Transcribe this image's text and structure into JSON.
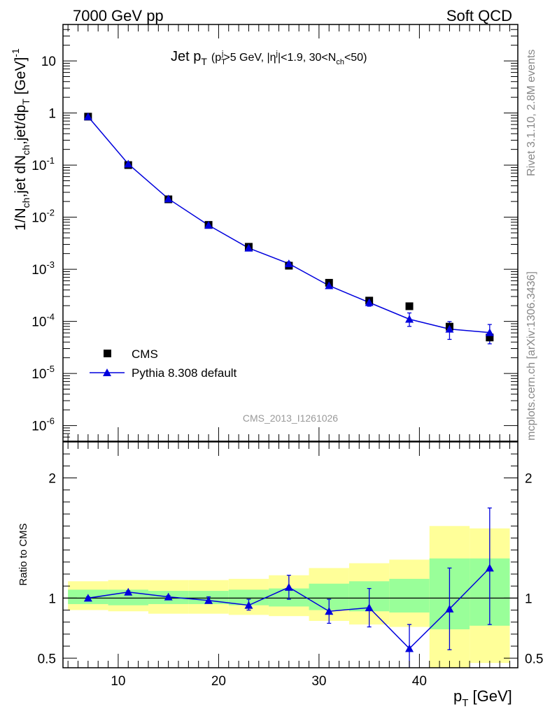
{
  "header": {
    "left_title": "7000 GeV pp",
    "right_title": "Soft QCD"
  },
  "side_labels": {
    "rivet": "Rivet 3.1.10,  2.8M events",
    "mcplots": "mcplots.cern.ch [arXiv:1306.3436]"
  },
  "colors": {
    "mc": "#0000dd",
    "data": "#000000",
    "band_inner": "#99ff99",
    "band_outer": "#ffff99"
  },
  "chart_data": [
    {
      "type": "line",
      "panel": "main",
      "title": "Jet pT (pTj>5 GeV, |ηj|<1.9, 30<Nch<50)",
      "title_parts": {
        "main": "Jet p",
        "main_sub": "T",
        "cut_open": "(p",
        "cut_sub": "T",
        "cut_sup": "j",
        "cut_mid": ">5 GeV, |η",
        "cut_sup2": "j",
        "cut_mid2": "|<1.9, 30<N",
        "cut_sub2": "ch",
        "cut_end": "<50)"
      },
      "ylabel": "1/Nch,jet dNch,jet/dpT [GeV]-1",
      "ylabel_parts": {
        "a": "1/N",
        "a_sub": "ch",
        "b": ",jet dN",
        "b_sub": "ch",
        "c": ",jet/dp",
        "c_sub": "T",
        "d": " [GeV]",
        "d_sup": "-1"
      },
      "analysis_id": "CMS_2013_I1261026",
      "yscale": "log",
      "ylim": [
        5e-07,
        50
      ],
      "xlim": [
        4.5,
        49.8
      ],
      "y_ticks": [
        {
          "v": 1e-06,
          "base": "10",
          "exp": "-6"
        },
        {
          "v": 1e-05,
          "base": "10",
          "exp": "-5"
        },
        {
          "v": 0.0001,
          "base": "10",
          "exp": "-4"
        },
        {
          "v": 0.001,
          "base": "10",
          "exp": "-3"
        },
        {
          "v": 0.01,
          "base": "10",
          "exp": "-2"
        },
        {
          "v": 0.1,
          "base": "10",
          "exp": "-1"
        },
        {
          "v": 1,
          "base": "1",
          "exp": ""
        },
        {
          "v": 10,
          "base": "10",
          "exp": ""
        }
      ],
      "legend_position": "lower-left",
      "series": [
        {
          "name": "CMS",
          "style": "square-markers",
          "x": [
            7,
            11,
            15,
            19,
            23,
            27,
            31,
            35,
            39,
            43,
            47
          ],
          "y": [
            0.85,
            0.1,
            0.022,
            0.0071,
            0.0027,
            0.00117,
            0.00055,
            0.00025,
            0.000195,
            7.9e-05,
            4.9e-05
          ]
        },
        {
          "name": "Pythia 8.308 default",
          "style": "line-triangles",
          "x": [
            7,
            11,
            15,
            19,
            23,
            27,
            31,
            35,
            39,
            43,
            47
          ],
          "y": [
            0.85,
            0.105,
            0.0225,
            0.007,
            0.00255,
            0.00128,
            0.000485,
            0.00023,
            0.00011,
            7.1e-05,
            6.1e-05
          ],
          "err_lo": [
            0.8,
            0.099,
            0.0215,
            0.0067,
            0.00245,
            0.00118,
            0.000445,
            0.000195,
            8e-05,
            4.5e-05,
            3.7e-05
          ],
          "err_hi": [
            0.9,
            0.111,
            0.0235,
            0.0073,
            0.00265,
            0.00138,
            0.000525,
            0.000265,
            0.000145,
            9.9e-05,
            8.7e-05
          ]
        }
      ]
    },
    {
      "type": "line",
      "panel": "ratio",
      "ylabel": "Ratio to CMS",
      "xlabel": "pT [GeV]",
      "xlabel_parts": {
        "main": "p",
        "sub": "T",
        "unit": " [GeV]"
      },
      "ylim": [
        0.42,
        2.3
      ],
      "xlim": [
        4.5,
        49.8
      ],
      "x_ticks": [
        10,
        20,
        30,
        40
      ],
      "y_ticks": [
        0.5,
        1,
        2
      ],
      "bins": [
        [
          5,
          9
        ],
        [
          9,
          13
        ],
        [
          13,
          17
        ],
        [
          17,
          21
        ],
        [
          21,
          25
        ],
        [
          25,
          29
        ],
        [
          29,
          33
        ],
        [
          33,
          37
        ],
        [
          37,
          41
        ],
        [
          41,
          45
        ],
        [
          45,
          49
        ]
      ],
      "band_inner": {
        "lo": [
          0.95,
          0.94,
          0.95,
          0.95,
          0.94,
          0.93,
          0.9,
          0.89,
          0.88,
          0.74,
          0.77
        ],
        "hi": [
          1.07,
          1.07,
          1.06,
          1.06,
          1.07,
          1.08,
          1.12,
          1.14,
          1.16,
          1.33,
          1.33
        ]
      },
      "band_outer": {
        "lo": [
          0.9,
          0.89,
          0.87,
          0.87,
          0.86,
          0.85,
          0.81,
          0.78,
          0.76,
          0.4,
          0.46
        ],
        "hi": [
          1.14,
          1.15,
          1.15,
          1.15,
          1.16,
          1.19,
          1.25,
          1.29,
          1.32,
          1.6,
          1.58
        ]
      },
      "series": [
        {
          "name": "Pythia 8.308 default",
          "x": [
            7,
            11,
            15,
            19,
            23,
            27,
            31,
            35,
            39,
            43,
            47
          ],
          "y": [
            1.0,
            1.05,
            1.01,
            0.98,
            0.94,
            1.09,
            0.89,
            0.92,
            0.58,
            0.91,
            1.25
          ],
          "err_lo": [
            0.99,
            1.04,
            1.0,
            0.96,
            0.9,
            0.99,
            0.79,
            0.76,
            0.3,
            0.57,
            0.78
          ],
          "err_hi": [
            1.01,
            1.06,
            1.02,
            1.01,
            0.99,
            1.19,
            0.99,
            1.08,
            0.78,
            1.25,
            1.75
          ]
        }
      ]
    }
  ]
}
